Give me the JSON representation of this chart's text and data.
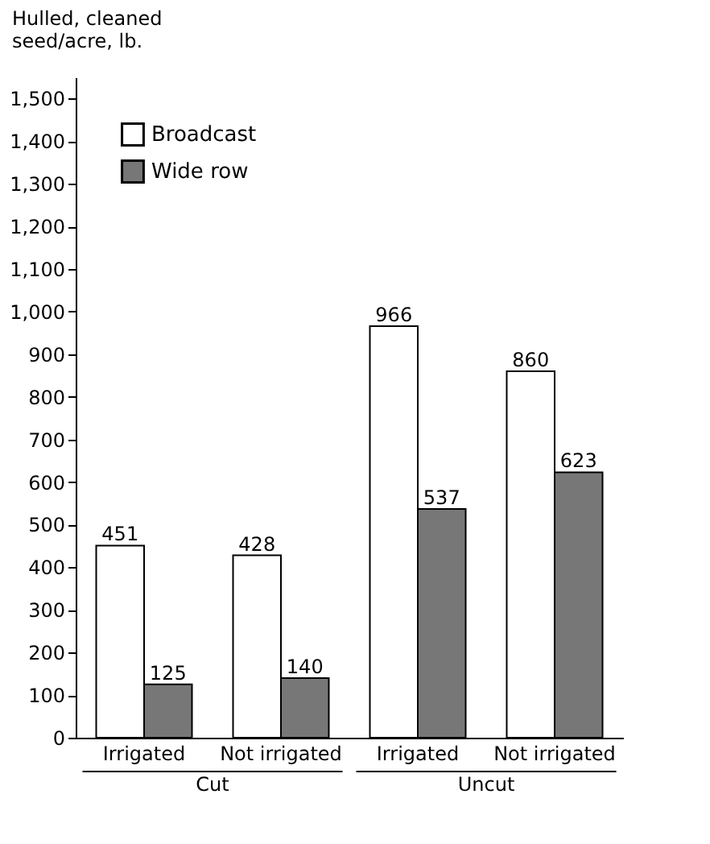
{
  "chart_data": {
    "type": "bar",
    "ylabel": "Hulled, cleaned seed/acre, lb.",
    "categories": [
      "Irrigated",
      "Not irrigated",
      "Irrigated",
      "Not irrigated"
    ],
    "series": [
      {
        "name": "Broadcast",
        "color": "#ffffff",
        "values": [
          451,
          428,
          966,
          860
        ]
      },
      {
        "name": "Wide row",
        "color": "#777777",
        "values": [
          125,
          140,
          537,
          623
        ]
      }
    ],
    "annotations": [
      "Cut",
      "Uncut"
    ],
    "ylim": [
      0,
      1550
    ],
    "yticks": [
      0,
      100,
      200,
      300,
      400,
      500,
      600,
      700,
      800,
      900,
      {
        "value": 1000,
        "label": "1,000"
      },
      {
        "value": 1100,
        "label": "1,100"
      },
      {
        "value": 1200,
        "label": "1,200"
      },
      {
        "value": 1300,
        "label": "1,300"
      },
      {
        "value": 1400,
        "label": "1,400"
      },
      {
        "value": 1500,
        "label": "1,500"
      }
    ],
    "data_labels": true,
    "grid": false,
    "legend": "top left"
  }
}
